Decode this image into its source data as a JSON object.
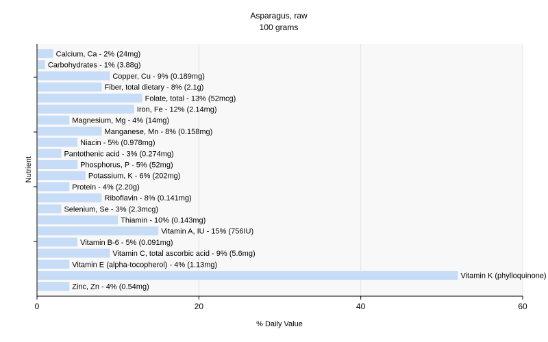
{
  "chart_data": {
    "type": "bar",
    "orientation": "horizontal",
    "title": "Asparagus, raw",
    "subtitle": "100 grams",
    "xlabel": "% Daily Value",
    "ylabel": "Nutrient",
    "xlim": [
      0,
      60
    ],
    "xticks": [
      "0",
      "20",
      "40",
      "60"
    ],
    "grid": true,
    "colors": {
      "bar": "#c6dcf7",
      "grid": "#e2e2ee",
      "axis": "#000000",
      "background": "#ffffff",
      "plot_background": "#f8f8f8"
    },
    "bars": [
      {
        "label": "Calcium, Ca - 2% (24mg)",
        "value": 2
      },
      {
        "label": "Carbohydrates - 1% (3.88g)",
        "value": 1
      },
      {
        "label": "Copper, Cu - 9% (0.189mg)",
        "value": 9
      },
      {
        "label": "Fiber, total dietary - 8% (2.1g)",
        "value": 8
      },
      {
        "label": "Folate, total - 13% (52mcg)",
        "value": 13
      },
      {
        "label": "Iron, Fe - 12% (2.14mg)",
        "value": 12
      },
      {
        "label": "Magnesium, Mg - 4% (14mg)",
        "value": 4
      },
      {
        "label": "Manganese, Mn - 8% (0.158mg)",
        "value": 8
      },
      {
        "label": "Niacin - 5% (0.978mg)",
        "value": 5
      },
      {
        "label": "Pantothenic acid - 3% (0.274mg)",
        "value": 3
      },
      {
        "label": "Phosphorus, P - 5% (52mg)",
        "value": 5
      },
      {
        "label": "Potassium, K - 6% (202mg)",
        "value": 6
      },
      {
        "label": "Protein - 4% (2.20g)",
        "value": 4
      },
      {
        "label": "Riboflavin - 8% (0.141mg)",
        "value": 8
      },
      {
        "label": "Selenium, Se - 3% (2.3mcg)",
        "value": 3
      },
      {
        "label": "Thiamin - 10% (0.143mg)",
        "value": 10
      },
      {
        "label": "Vitamin A, IU - 15% (756IU)",
        "value": 15
      },
      {
        "label": "Vitamin B-6 - 5% (0.091mg)",
        "value": 5
      },
      {
        "label": "Vitamin C, total ascorbic acid - 9% (5.6mg)",
        "value": 9
      },
      {
        "label": "Vitamin E (alpha-tocopherol) - 4% (1.13mg)",
        "value": 4
      },
      {
        "label": "Vitamin K (phylloquinone) - 52% (41.6mcg)",
        "value": 52
      },
      {
        "label": "Zinc, Zn - 4% (0.54mg)",
        "value": 4
      }
    ]
  }
}
